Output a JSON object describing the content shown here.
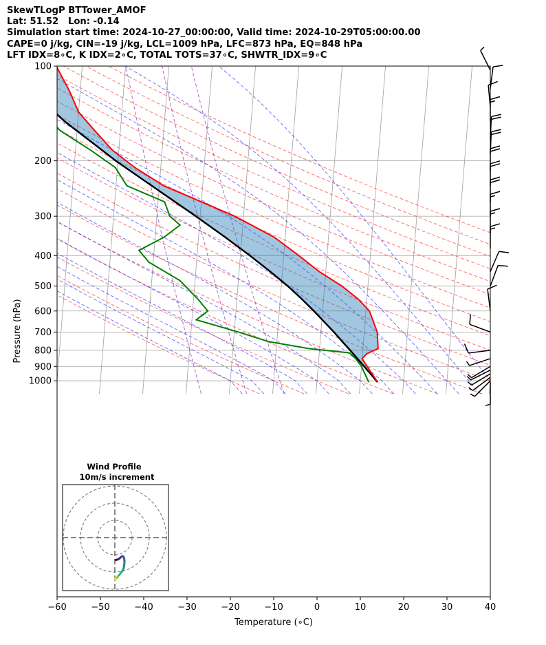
{
  "header": {
    "line1": "SkewTLogP BTTower_AMOF",
    "line2": "Lat: 51.52   Lon: -0.14",
    "line3": "Simulation start time: 2024-10-27_00:00:00, Valid time: 2024-10-29T05:00:00.00",
    "line4": "CAPE=0 j/kg, CIN=-19 j/kg, LCL=1009 hPa, LFC=873 hPa, EQ=848 hPa",
    "line5": "LFT IDX=8∘C, K IDX=2∘C, TOTAL TOTS=37∘C, SHWTR_IDX=9∘C"
  },
  "chart_data": {
    "type": "skew-t",
    "xlabel": "Temperature (∘C)",
    "ylabel": "Pressure (hPa)",
    "xlim": [
      -60,
      40
    ],
    "ylim": [
      1050,
      100
    ],
    "grid": true,
    "xticks": [
      "−60",
      "−50",
      "−40",
      "−30",
      "−20",
      "−10",
      "0",
      "10",
      "20",
      "30",
      "40"
    ],
    "yticks": [
      "100",
      "200",
      "300",
      "400",
      "500",
      "600",
      "700",
      "800",
      "900",
      "1000"
    ],
    "colors": {
      "temperature": "#ff0000",
      "dewpoint": "#008000",
      "parcel": "#000000",
      "cin_fill": "#1f77b4",
      "dry_adiabat": "#ff0000",
      "moist_adiabat": "#0000ff",
      "mixing_ratio": "#8000a0",
      "isotherm": "#a0a0a0"
    },
    "temperature_profile": [
      [
        1010,
        14.0
      ],
      [
        1000,
        13.8
      ],
      [
        900,
        11.3
      ],
      [
        850,
        10.0
      ],
      [
        820,
        11.0
      ],
      [
        790,
        13.5
      ],
      [
        700,
        13.0
      ],
      [
        600,
        10.8
      ],
      [
        550,
        8.0
      ],
      [
        500,
        4.0
      ],
      [
        450,
        -1.5
      ],
      [
        400,
        -6.5
      ],
      [
        350,
        -12.5
      ],
      [
        300,
        -22.0
      ],
      [
        270,
        -30.0
      ],
      [
        240,
        -39.0
      ],
      [
        210,
        -46.0
      ],
      [
        185,
        -51.5
      ],
      [
        160,
        -56.0
      ],
      [
        140,
        -60.0
      ],
      [
        120,
        -62.5
      ],
      [
        100,
        -66.0
      ]
    ],
    "dewpoint_profile": [
      [
        1010,
        12.0
      ],
      [
        1000,
        11.8
      ],
      [
        900,
        10.0
      ],
      [
        850,
        8.5
      ],
      [
        815,
        7.0
      ],
      [
        790,
        -2.5
      ],
      [
        750,
        -12.0
      ],
      [
        700,
        -19.0
      ],
      [
        640,
        -29.0
      ],
      [
        600,
        -26.5
      ],
      [
        550,
        -29.0
      ],
      [
        480,
        -33.5
      ],
      [
        420,
        -41.0
      ],
      [
        385,
        -43.5
      ],
      [
        350,
        -38.0
      ],
      [
        320,
        -34.5
      ],
      [
        300,
        -37.0
      ],
      [
        270,
        -38.5
      ],
      [
        240,
        -47.5
      ],
      [
        210,
        -50.5
      ],
      [
        185,
        -56.5
      ],
      [
        160,
        -64.0
      ],
      [
        140,
        -68.0
      ],
      [
        120,
        -70.0
      ],
      [
        100,
        -71.0
      ]
    ],
    "parcel_profile": [
      [
        1010,
        14.0
      ],
      [
        1000,
        13.7
      ],
      [
        950,
        12.2
      ],
      [
        900,
        10.6
      ],
      [
        850,
        8.9
      ],
      [
        800,
        7.1
      ],
      [
        750,
        5.1
      ],
      [
        700,
        3.0
      ],
      [
        650,
        0.6
      ],
      [
        600,
        -2.0
      ],
      [
        550,
        -5.0
      ],
      [
        500,
        -8.5
      ],
      [
        450,
        -12.8
      ],
      [
        400,
        -17.8
      ],
      [
        350,
        -23.8
      ],
      [
        300,
        -31.0
      ],
      [
        250,
        -39.8
      ],
      [
        200,
        -50.5
      ],
      [
        150,
        -63.0
      ],
      [
        100,
        -78.0
      ]
    ],
    "cin_region": "between parcel and temperature profiles",
    "wind_barbs": [
      {
        "p": 1010,
        "u": 0,
        "v": -3
      },
      {
        "p": 1000,
        "u": -2,
        "v": -2
      },
      {
        "p": 975,
        "u": -4,
        "v": -3
      },
      {
        "p": 950,
        "u": -5,
        "v": -3
      },
      {
        "p": 925,
        "u": -6,
        "v": -3
      },
      {
        "p": 900,
        "u": -5,
        "v": -3
      },
      {
        "p": 850,
        "u": -6,
        "v": -2
      },
      {
        "p": 800,
        "u": -8,
        "v": -1
      },
      {
        "p": 700,
        "u": -8,
        "v": 3
      },
      {
        "p": 600,
        "u": -1,
        "v": 8
      },
      {
        "p": 500,
        "u": 3,
        "v": 8
      },
      {
        "p": 450,
        "u": 3,
        "v": 7
      },
      {
        "p": 380,
        "u": 0,
        "v": 14
      },
      {
        "p": 340,
        "u": 0,
        "v": 17
      },
      {
        "p": 300,
        "u": 0,
        "v": 17
      },
      {
        "p": 270,
        "u": 0,
        "v": 20
      },
      {
        "p": 240,
        "u": 0,
        "v": 19
      },
      {
        "p": 215,
        "u": 0,
        "v": 18
      },
      {
        "p": 190,
        "u": 1,
        "v": 22
      },
      {
        "p": 170,
        "u": 1,
        "v": 20
      },
      {
        "p": 150,
        "u": 0,
        "v": 16
      },
      {
        "p": 135,
        "u": -1,
        "v": 11
      },
      {
        "p": 118,
        "u": 1,
        "v": 8
      },
      {
        "p": 103,
        "u": -3,
        "v": 6
      }
    ],
    "inset": {
      "title": "Wind Profile",
      "subtitle": "10m/s increment",
      "rings": 3,
      "hodograph": [
        [
          0.5,
          -8.5
        ],
        [
          0,
          -8
        ],
        [
          0.5,
          -7.3
        ],
        [
          1,
          -7.6
        ],
        [
          1.5,
          -7.2
        ],
        [
          1.8,
          -6.5
        ],
        [
          2.5,
          -5.8
        ],
        [
          3.5,
          -4.5
        ],
        [
          4.5,
          -3.2
        ],
        [
          5.2,
          -1.5
        ],
        [
          5.5,
          0.5
        ],
        [
          5.6,
          2.5
        ],
        [
          5.4,
          4
        ],
        [
          5,
          5
        ],
        [
          4.2,
          5.2
        ],
        [
          3,
          4.2
        ],
        [
          2.2,
          3.5
        ],
        [
          1.2,
          3.2
        ],
        [
          0.5,
          3
        ]
      ]
    }
  }
}
